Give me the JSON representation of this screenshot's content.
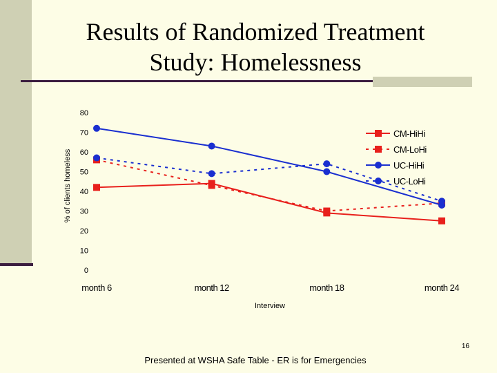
{
  "slide": {
    "title_line1": "Results of Randomized Treatment",
    "title_line2": "Study: Homelessness",
    "slide_number": "16",
    "footer": "Presented at WSHA Safe Table - ER is for Emergencies"
  },
  "colors": {
    "background": "#fdfde6",
    "red": "#e8201c",
    "blue": "#1a2fd0",
    "sidebar": "#cfd0b4",
    "rule": "#3b1d3f"
  },
  "chart_data": {
    "type": "line",
    "categories": [
      "month 6",
      "month 12",
      "month 18",
      "month 24"
    ],
    "series": [
      {
        "name": "CM-HiHi",
        "values": [
          42,
          44,
          29,
          25
        ],
        "color": "#e8201c",
        "dashed": false,
        "marker": "square"
      },
      {
        "name": "CM-LoHi",
        "values": [
          56,
          43,
          30,
          34
        ],
        "color": "#e8201c",
        "dashed": true,
        "marker": "square"
      },
      {
        "name": "UC-HiHi",
        "values": [
          72,
          63,
          50,
          33
        ],
        "color": "#1a2fd0",
        "dashed": false,
        "marker": "circle"
      },
      {
        "name": "UC-LoHi",
        "values": [
          57,
          49,
          54,
          35
        ],
        "color": "#1a2fd0",
        "dashed": true,
        "marker": "circle"
      }
    ],
    "title": "",
    "xlabel": "Interview",
    "ylabel": "% of clients homeless",
    "ylim": [
      0,
      80
    ],
    "yticks": [
      "0",
      "10",
      "20",
      "30",
      "40",
      "50",
      "60",
      "70",
      "80"
    ],
    "grid": false,
    "legend": "top-right"
  }
}
